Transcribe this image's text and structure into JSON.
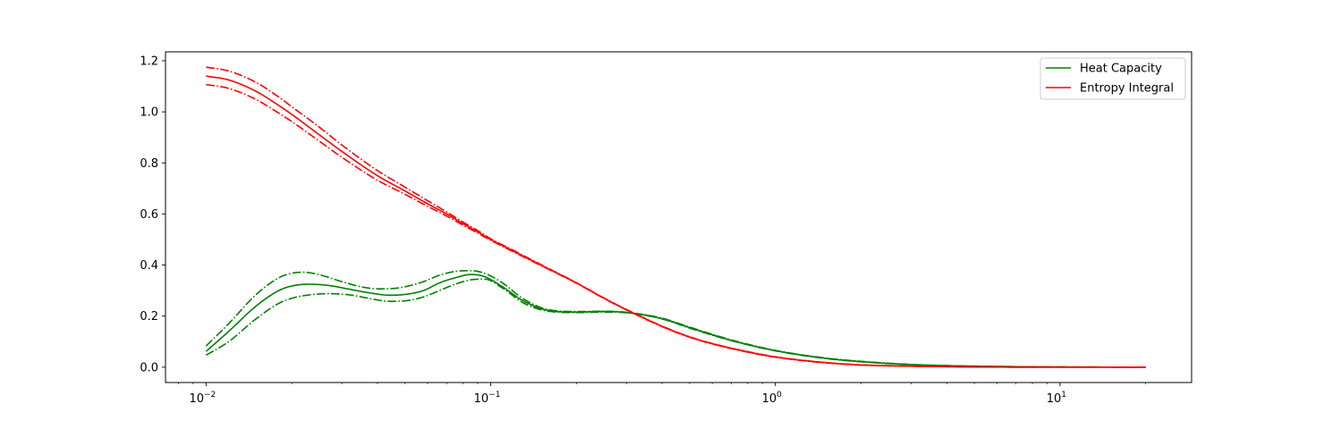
{
  "chart_data": {
    "type": "line",
    "title": "",
    "xlabel": "",
    "ylabel": "",
    "xscale": "log",
    "xlim": [
      0.0072,
      29
    ],
    "ylim": [
      -0.06,
      1.235
    ],
    "grid": false,
    "legend_placement": "top-right",
    "x_ticks": [
      {
        "value": 0.01,
        "base": "10",
        "exp": "−2"
      },
      {
        "value": 0.1,
        "base": "10",
        "exp": "−1"
      },
      {
        "value": 1,
        "base": "10",
        "exp": "0"
      },
      {
        "value": 10,
        "base": "10",
        "exp": "1"
      }
    ],
    "y_ticks": [
      {
        "value": 0.0,
        "label": "0.0"
      },
      {
        "value": 0.2,
        "label": "0.2"
      },
      {
        "value": 0.4,
        "label": "0.4"
      },
      {
        "value": 0.6,
        "label": "0.6"
      },
      {
        "value": 0.8,
        "label": "0.8"
      },
      {
        "value": 1.0,
        "label": "1.0"
      },
      {
        "value": 1.2,
        "label": "1.2"
      }
    ],
    "series": [
      {
        "name": "Heat Capacity",
        "color": "#008000",
        "style": "solid",
        "x": [
          0.01,
          0.012,
          0.015,
          0.018,
          0.02,
          0.023,
          0.027,
          0.032,
          0.038,
          0.044,
          0.05,
          0.058,
          0.066,
          0.075,
          0.085,
          0.095,
          0.11,
          0.13,
          0.16,
          0.2,
          0.25,
          0.3,
          0.4,
          0.5,
          0.7,
          1.0,
          1.5,
          2.0,
          3.0,
          5.0,
          10.0,
          20.0
        ],
        "y": [
          0.062,
          0.14,
          0.24,
          0.3,
          0.318,
          0.325,
          0.32,
          0.305,
          0.29,
          0.282,
          0.285,
          0.3,
          0.33,
          0.35,
          0.363,
          0.355,
          0.315,
          0.26,
          0.222,
          0.216,
          0.218,
          0.214,
          0.19,
          0.155,
          0.105,
          0.065,
          0.035,
          0.022,
          0.01,
          0.004,
          0.001,
          0.0
        ]
      },
      {
        "name": "Heat Capacity upper bound",
        "color": "#008000",
        "style": "dashdot",
        "x": [
          0.01,
          0.012,
          0.015,
          0.018,
          0.02,
          0.022,
          0.025,
          0.03,
          0.035,
          0.04,
          0.045,
          0.05,
          0.058,
          0.066,
          0.075,
          0.085,
          0.095,
          0.11,
          0.13,
          0.16,
          0.2,
          0.25,
          0.3,
          0.4,
          0.5,
          0.7,
          1.0,
          1.5,
          2.0,
          3.0,
          5.0,
          10.0,
          20.0
        ],
        "y": [
          0.083,
          0.17,
          0.285,
          0.35,
          0.368,
          0.372,
          0.362,
          0.335,
          0.315,
          0.307,
          0.308,
          0.315,
          0.335,
          0.36,
          0.375,
          0.378,
          0.368,
          0.33,
          0.268,
          0.225,
          0.218,
          0.219,
          0.215,
          0.192,
          0.157,
          0.107,
          0.066,
          0.036,
          0.023,
          0.011,
          0.004,
          0.001,
          0.0
        ]
      },
      {
        "name": "Heat Capacity lower bound",
        "color": "#008000",
        "style": "dashdot",
        "x": [
          0.01,
          0.012,
          0.015,
          0.018,
          0.02,
          0.023,
          0.027,
          0.032,
          0.038,
          0.044,
          0.05,
          0.058,
          0.066,
          0.075,
          0.085,
          0.095,
          0.11,
          0.13,
          0.16,
          0.2,
          0.25,
          0.3,
          0.4,
          0.5,
          0.7,
          1.0,
          1.5,
          2.0,
          3.0,
          5.0,
          10.0,
          20.0
        ],
        "y": [
          0.047,
          0.1,
          0.19,
          0.25,
          0.27,
          0.283,
          0.288,
          0.283,
          0.268,
          0.258,
          0.26,
          0.275,
          0.3,
          0.325,
          0.342,
          0.345,
          0.31,
          0.252,
          0.219,
          0.214,
          0.216,
          0.213,
          0.189,
          0.153,
          0.104,
          0.064,
          0.034,
          0.021,
          0.01,
          0.004,
          0.001,
          0.0
        ]
      },
      {
        "name": "Entropy Integral",
        "color": "#ff0000",
        "style": "solid",
        "x": [
          0.01,
          0.012,
          0.015,
          0.018,
          0.02,
          0.025,
          0.03,
          0.04,
          0.05,
          0.06,
          0.07,
          0.08,
          0.09,
          0.1,
          0.12,
          0.15,
          0.2,
          0.25,
          0.3,
          0.4,
          0.5,
          0.6,
          0.8,
          1.0,
          1.5,
          2.0,
          3.0,
          5.0,
          10.0,
          20.0
        ],
        "y": [
          1.14,
          1.125,
          1.08,
          1.025,
          0.99,
          0.91,
          0.845,
          0.75,
          0.69,
          0.64,
          0.6,
          0.562,
          0.53,
          0.5,
          0.455,
          0.4,
          0.33,
          0.27,
          0.225,
          0.16,
          0.118,
          0.092,
          0.06,
          0.04,
          0.018,
          0.009,
          0.004,
          0.001,
          0.0,
          0.0
        ]
      },
      {
        "name": "Entropy Integral upper bound",
        "color": "#ff0000",
        "style": "dashdot",
        "x": [
          0.01,
          0.012,
          0.015,
          0.018,
          0.02,
          0.025,
          0.03,
          0.04,
          0.05,
          0.06,
          0.07,
          0.08,
          0.09,
          0.1,
          0.12,
          0.15,
          0.2,
          0.25,
          0.3,
          0.4,
          0.5,
          0.6,
          0.8,
          1.0,
          1.5,
          2.0,
          3.0,
          5.0,
          10.0,
          20.0
        ],
        "y": [
          1.175,
          1.16,
          1.115,
          1.058,
          1.02,
          0.94,
          0.87,
          0.77,
          0.705,
          0.652,
          0.608,
          0.568,
          0.535,
          0.503,
          0.458,
          0.402,
          0.331,
          0.271,
          0.226,
          0.161,
          0.119,
          0.093,
          0.061,
          0.041,
          0.018,
          0.009,
          0.004,
          0.001,
          0.0,
          0.0
        ]
      },
      {
        "name": "Entropy Integral lower bound",
        "color": "#ff0000",
        "style": "dashdot",
        "x": [
          0.01,
          0.012,
          0.015,
          0.018,
          0.02,
          0.025,
          0.03,
          0.04,
          0.05,
          0.06,
          0.07,
          0.08,
          0.09,
          0.1,
          0.12,
          0.15,
          0.2,
          0.25,
          0.3,
          0.4,
          0.5,
          0.6,
          0.8,
          1.0,
          1.5,
          2.0,
          3.0,
          5.0,
          10.0,
          20.0
        ],
        "y": [
          1.107,
          1.092,
          1.048,
          0.995,
          0.962,
          0.885,
          0.822,
          0.732,
          0.677,
          0.63,
          0.592,
          0.556,
          0.525,
          0.497,
          0.452,
          0.398,
          0.329,
          0.269,
          0.224,
          0.159,
          0.117,
          0.091,
          0.059,
          0.039,
          0.017,
          0.008,
          0.004,
          0.001,
          0.0,
          0.0
        ]
      }
    ],
    "legend": [
      {
        "label": "Heat Capacity",
        "color": "#008000"
      },
      {
        "label": "Entropy Integral",
        "color": "#ff0000"
      }
    ]
  }
}
